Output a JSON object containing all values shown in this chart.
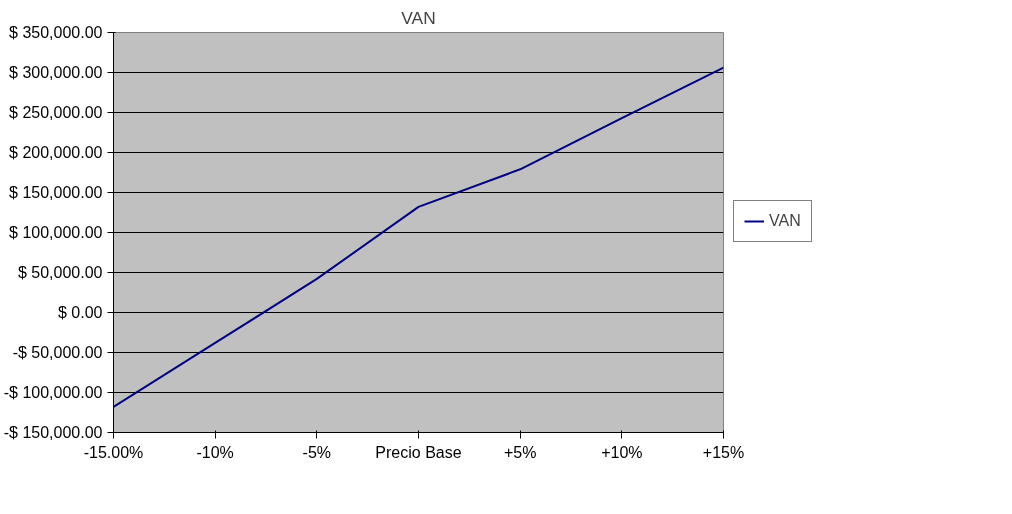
{
  "chart_data": {
    "type": "line",
    "title": "VAN",
    "categories": [
      "-15.00%",
      "-10%",
      "-5%",
      "Precio Base",
      "+5%",
      "+10%",
      "+15%"
    ],
    "series": [
      {
        "name": "VAN",
        "color": "#000080",
        "values": [
          -118000,
          -38000,
          42000,
          132000,
          179000,
          243000,
          306000
        ]
      }
    ],
    "ylim": [
      -150000,
      350000
    ],
    "yticks": [
      {
        "value": -150000,
        "label": "-$ 150,000.00"
      },
      {
        "value": -100000,
        "label": "-$ 100,000.00"
      },
      {
        "value": -50000,
        "label": "-$ 50,000.00"
      },
      {
        "value": 0,
        "label": "$ 0.00"
      },
      {
        "value": 50000,
        "label": "$ 50,000.00"
      },
      {
        "value": 100000,
        "label": "$ 100,000.00"
      },
      {
        "value": 150000,
        "label": "$ 150,000.00"
      },
      {
        "value": 200000,
        "label": "$ 200,000.00"
      },
      {
        "value": 250000,
        "label": "$ 250,000.00"
      },
      {
        "value": 300000,
        "label": "$ 300,000.00"
      },
      {
        "value": 350000,
        "label": "$ 350,000.00"
      }
    ],
    "grid": "y",
    "legend": "right",
    "marker": "none",
    "line_style": "solid"
  }
}
